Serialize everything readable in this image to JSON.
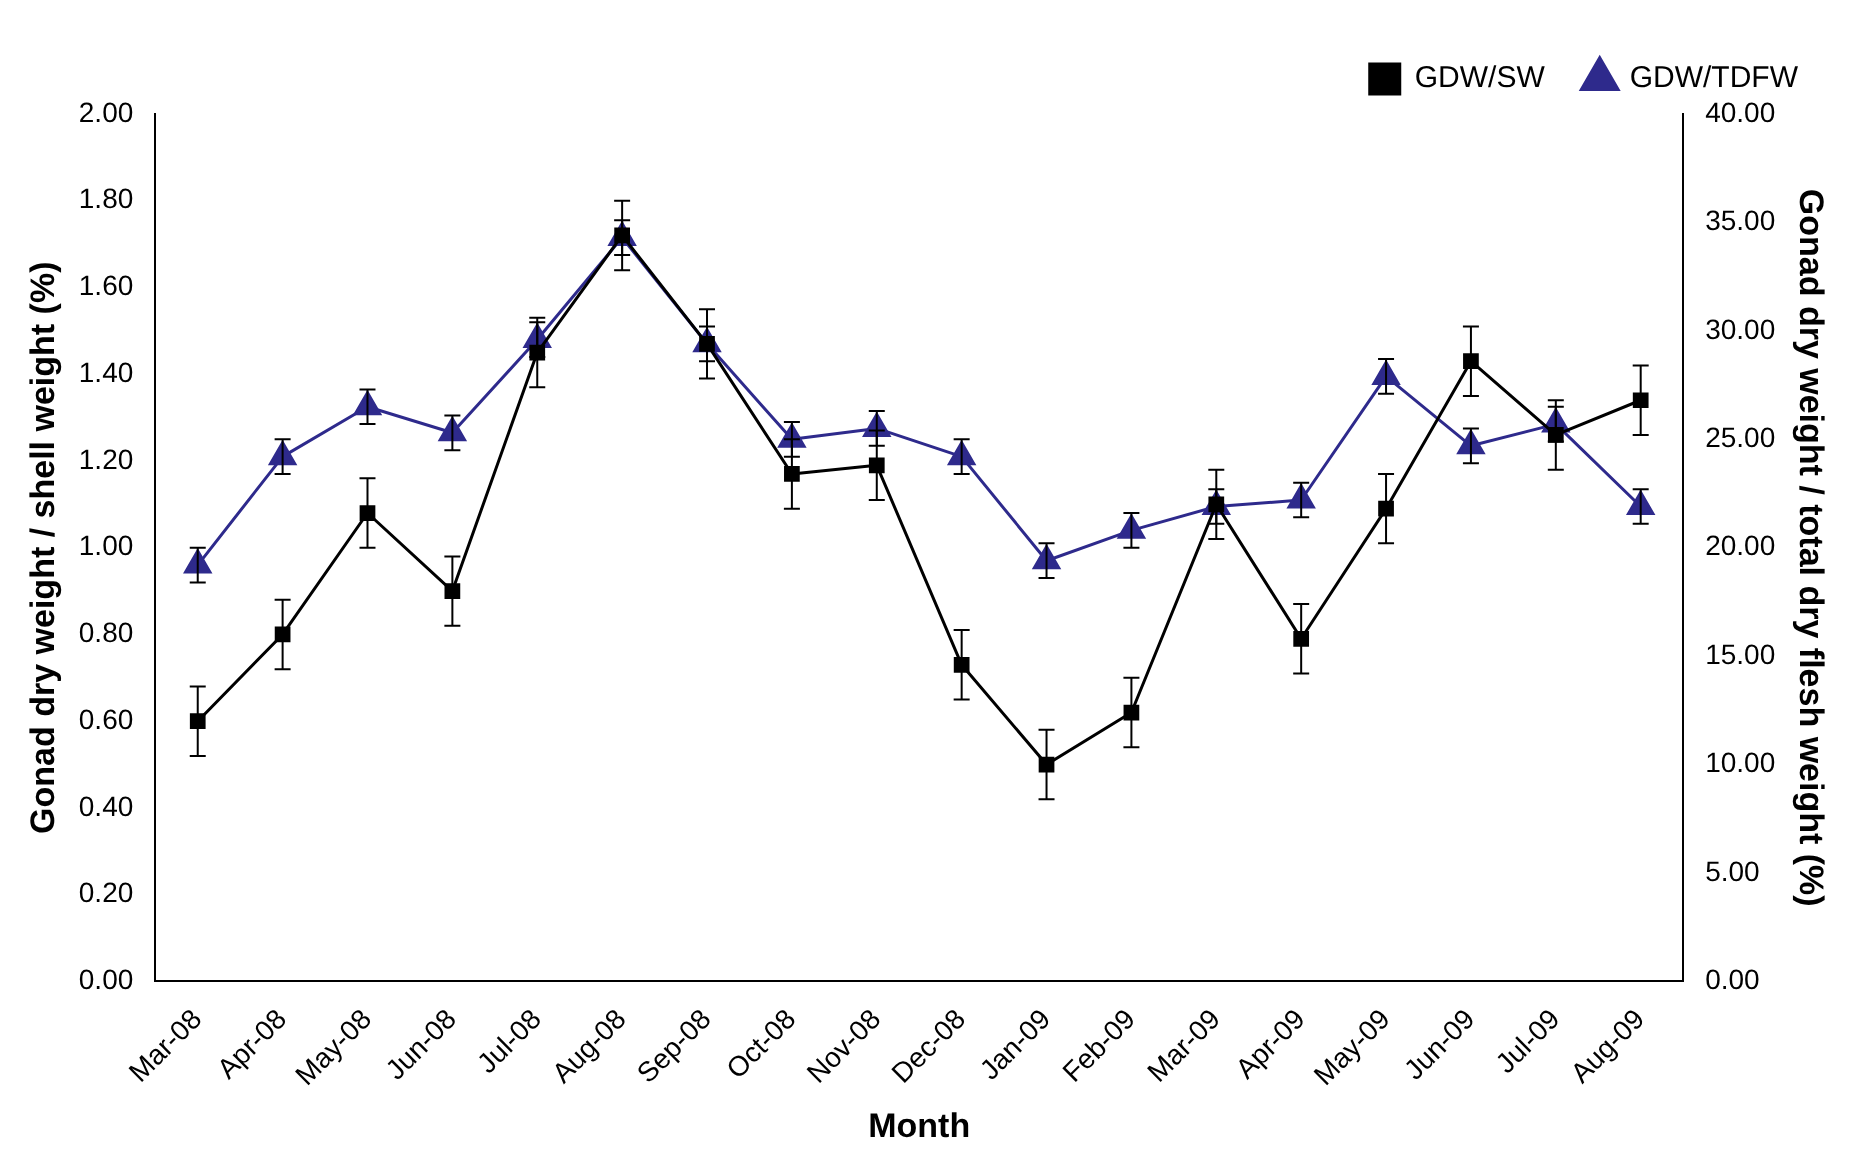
{
  "chart_data": {
    "type": "line",
    "xlabel": "Month",
    "ylabel": "Gonad dry weight / shell weight (%)",
    "y2label": "Gonad dry weight / total dry flesh weight (%)",
    "categories": [
      "Mar-08",
      "Apr-08",
      "May-08",
      "Jun-08",
      "Jul-08",
      "Aug-08",
      "Sep-08",
      "Oct-08",
      "Nov-08",
      "Dec-08",
      "Jan-09",
      "Feb-09",
      "Mar-09",
      "Apr-09",
      "May-09",
      "Jun-09",
      "Jul-09",
      "Aug-09"
    ],
    "series": [
      {
        "name": "GDW/SW",
        "color": "#000000",
        "marker": "square",
        "values": [
          0.6,
          0.8,
          1.08,
          0.9,
          1.45,
          1.72,
          1.47,
          1.17,
          1.19,
          0.73,
          0.5,
          0.62,
          1.1,
          0.79,
          1.09,
          1.43,
          1.26,
          1.34
        ],
        "errors": [
          0.08,
          0.08,
          0.08,
          0.08,
          0.08,
          0.08,
          0.08,
          0.08,
          0.08,
          0.08,
          0.08,
          0.08,
          0.08,
          0.08,
          0.08,
          0.08,
          0.08,
          0.08
        ]
      },
      {
        "name": "GDW/TDFW",
        "color": "#2e2a8c",
        "marker": "triangle",
        "axis": "y2",
        "values": [
          19.2,
          24.2,
          26.5,
          25.3,
          29.6,
          34.3,
          29.4,
          25.0,
          25.5,
          24.2,
          19.4,
          20.8,
          21.9,
          22.2,
          27.9,
          24.7,
          25.7,
          21.9
        ],
        "errors": [
          0.8,
          0.8,
          0.8,
          0.8,
          0.8,
          0.8,
          0.8,
          0.8,
          0.8,
          0.8,
          0.8,
          0.8,
          0.8,
          0.8,
          0.8,
          0.8,
          0.8,
          0.8
        ]
      }
    ],
    "ylim": [
      0,
      2
    ],
    "yticks": [
      {
        "value": 0,
        "label": "0.00"
      },
      {
        "value": 0.2,
        "label": "0.20"
      },
      {
        "value": 0.4,
        "label": "0.40"
      },
      {
        "value": 0.6,
        "label": "0.60"
      },
      {
        "value": 0.8,
        "label": "0.80"
      },
      {
        "value": 1,
        "label": "1.00"
      },
      {
        "value": 1.2,
        "label": "1.20"
      },
      {
        "value": 1.4,
        "label": "1.40"
      },
      {
        "value": 1.6,
        "label": "1.60"
      },
      {
        "value": 1.8,
        "label": "1.80"
      },
      {
        "value": 2,
        "label": "2.00"
      }
    ],
    "y2lim": [
      0,
      40
    ],
    "y2ticks": [
      {
        "value": 0,
        "label": "0.00"
      },
      {
        "value": 5,
        "label": "5.00"
      },
      {
        "value": 10,
        "label": "10.00"
      },
      {
        "value": 15,
        "label": "15.00"
      },
      {
        "value": 20,
        "label": "20.00"
      },
      {
        "value": 25,
        "label": "25.00"
      },
      {
        "value": 30,
        "label": "30.00"
      },
      {
        "value": 35,
        "label": "35.00"
      },
      {
        "value": 40,
        "label": "40.00"
      }
    ],
    "grid": false,
    "legend": "top right",
    "line_style": "solid"
  }
}
